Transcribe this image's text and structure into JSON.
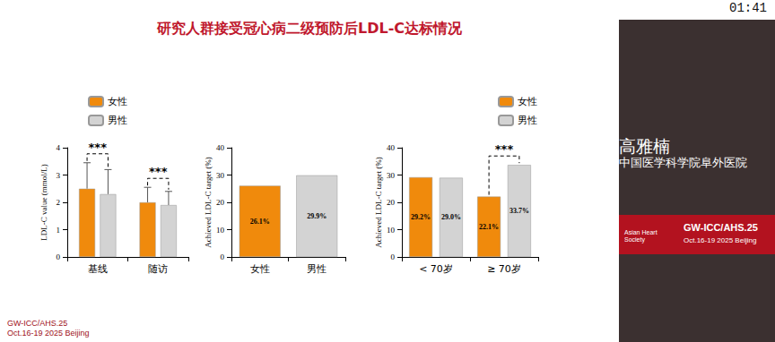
{
  "slide": {
    "title": "研究人群接受冠心病二级预防后LDL-C达标情况",
    "timer": "01:41",
    "speaker": {
      "name": "高雅楠",
      "affiliation": "中国医学科学院阜外医院"
    },
    "footer": {
      "event": "GW-ICC/AHS.25",
      "dates": "Oct.16-19 2025 Beijing",
      "society": "Asian Heart Society"
    }
  },
  "chart_data": [
    {
      "type": "bar",
      "y_label": "LDL-C value (mmol/L)",
      "categories": [
        "基线",
        "随访"
      ],
      "series": [
        {
          "name": "女性",
          "color": "#f08a0c",
          "values": [
            2.5,
            2.0
          ],
          "errors": [
            0.95,
            0.55
          ]
        },
        {
          "name": "男性",
          "color": "#d3d3d3",
          "values": [
            2.3,
            1.9
          ],
          "errors": [
            0.9,
            0.5
          ]
        }
      ],
      "ylim": [
        0,
        4
      ],
      "yticks": [
        0,
        1,
        2,
        3,
        4
      ],
      "grid": false,
      "legend": "upper left",
      "annotations": [
        {
          "text": "***",
          "category": "基线"
        },
        {
          "text": "***",
          "category": "随访"
        }
      ]
    },
    {
      "type": "bar",
      "y_label": "Achieved LDL-C target (%)",
      "categories": [
        "女性",
        "男性"
      ],
      "values": [
        26.1,
        29.9
      ],
      "colors": [
        "#f08a0c",
        "#d3d3d3"
      ],
      "value_labels": [
        "26.1%",
        "29.9%"
      ],
      "data_labels": true,
      "ylim": [
        0,
        40
      ],
      "yticks": [
        0,
        10,
        20,
        30,
        40
      ],
      "grid": false
    },
    {
      "type": "bar",
      "y_label": "Achieved LDL-C target (%)",
      "categories": [
        "< 70岁",
        "≥ 70岁"
      ],
      "series": [
        {
          "name": "女性",
          "color": "#f08a0c",
          "values": [
            29.2,
            22.1
          ],
          "value_labels": [
            "29.2%",
            "22.1%"
          ]
        },
        {
          "name": "男性",
          "color": "#d3d3d3",
          "values": [
            29.0,
            33.7
          ],
          "value_labels": [
            "29.0%",
            "33.7%"
          ]
        }
      ],
      "data_labels": true,
      "ylim": [
        0,
        40
      ],
      "yticks": [
        0,
        10,
        20,
        30,
        40
      ],
      "grid": false,
      "legend": "upper right",
      "annotations": [
        {
          "text": "***",
          "category": "≥ 70岁"
        }
      ]
    }
  ]
}
